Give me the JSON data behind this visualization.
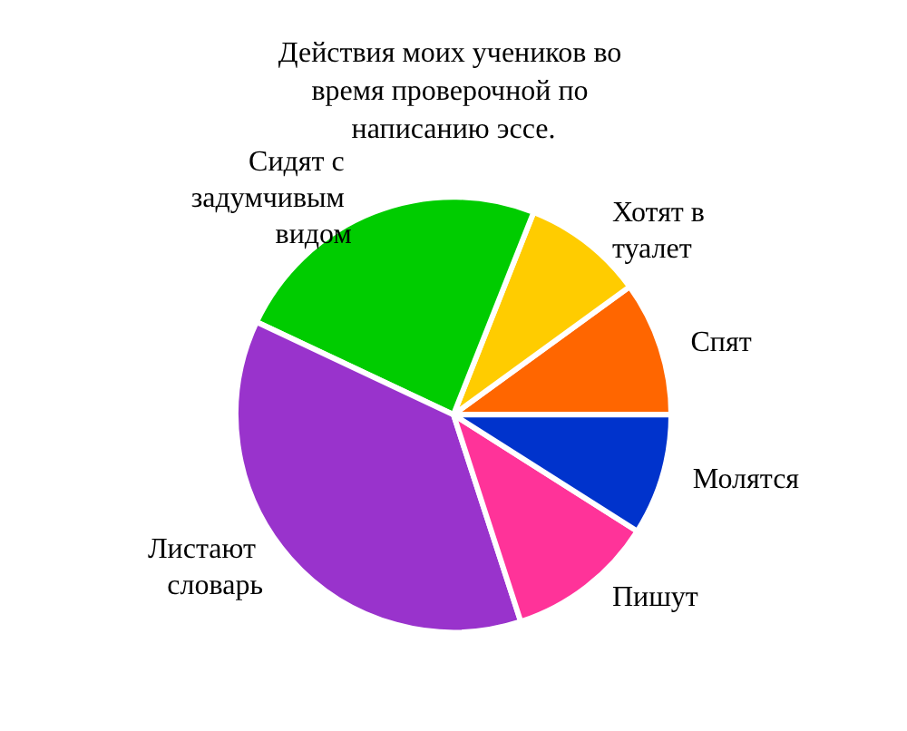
{
  "chart_data": {
    "type": "pie",
    "title": "Действия моих учеников во время проверочной по написанию эссе.",
    "categories": [
      "Спят",
      "Хотят в туалет",
      "Сидят с задумчивым видом",
      "Листают словарь",
      "Пишут",
      "Молятся"
    ],
    "values": [
      10,
      9,
      24,
      37,
      11,
      9
    ],
    "colors": [
      "#ff6600",
      "#ffcc00",
      "#00cc00",
      "#9933cc",
      "#ff3399",
      "#0033cc"
    ],
    "legend": false
  }
}
